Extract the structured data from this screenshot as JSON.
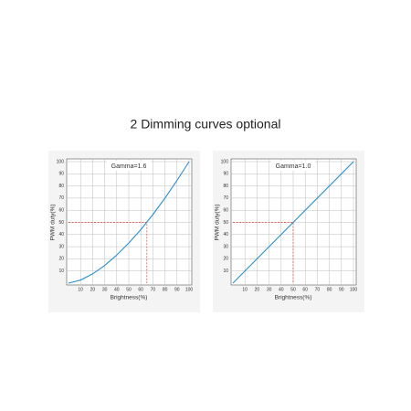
{
  "title": "2 Dimming curves optional",
  "chart_data": [
    {
      "type": "line",
      "annotation": "Gamma=1.6",
      "x_label": "Brightness(%)",
      "y_label": "PWM duty(%)",
      "x": [
        0,
        10,
        20,
        30,
        40,
        50,
        60,
        70,
        80,
        90,
        100
      ],
      "series": [
        {
          "color": "#2b8fd0",
          "values": [
            0,
            2.5,
            7.6,
            14.5,
            23.1,
            33,
            44.1,
            56.5,
            70,
            84.5,
            100
          ]
        }
      ],
      "reference": {
        "x": 65,
        "y": 50,
        "color": "#e0463c"
      },
      "xlim": [
        0,
        100
      ],
      "ylim": [
        0,
        100
      ],
      "xticks": [
        10,
        20,
        30,
        40,
        50,
        60,
        70,
        80,
        90,
        100
      ],
      "yticks": [
        10,
        20,
        30,
        40,
        50,
        60,
        70,
        80,
        90,
        100
      ],
      "grid": true
    },
    {
      "type": "line",
      "annotation": "Gamma=1.0",
      "x_label": "Brightness(%)",
      "y_label": "PWM duty(%)",
      "x": [
        0,
        100
      ],
      "series": [
        {
          "color": "#2b8fd0",
          "values": [
            0,
            100
          ]
        }
      ],
      "reference": {
        "x": 50,
        "y": 50,
        "color": "#e0463c"
      },
      "xlim": [
        0,
        100
      ],
      "ylim": [
        0,
        100
      ],
      "xticks": [
        10,
        20,
        30,
        40,
        50,
        60,
        70,
        80,
        90,
        100
      ],
      "yticks": [
        10,
        20,
        30,
        40,
        50,
        60,
        70,
        80,
        90,
        100
      ],
      "grid": true
    }
  ]
}
